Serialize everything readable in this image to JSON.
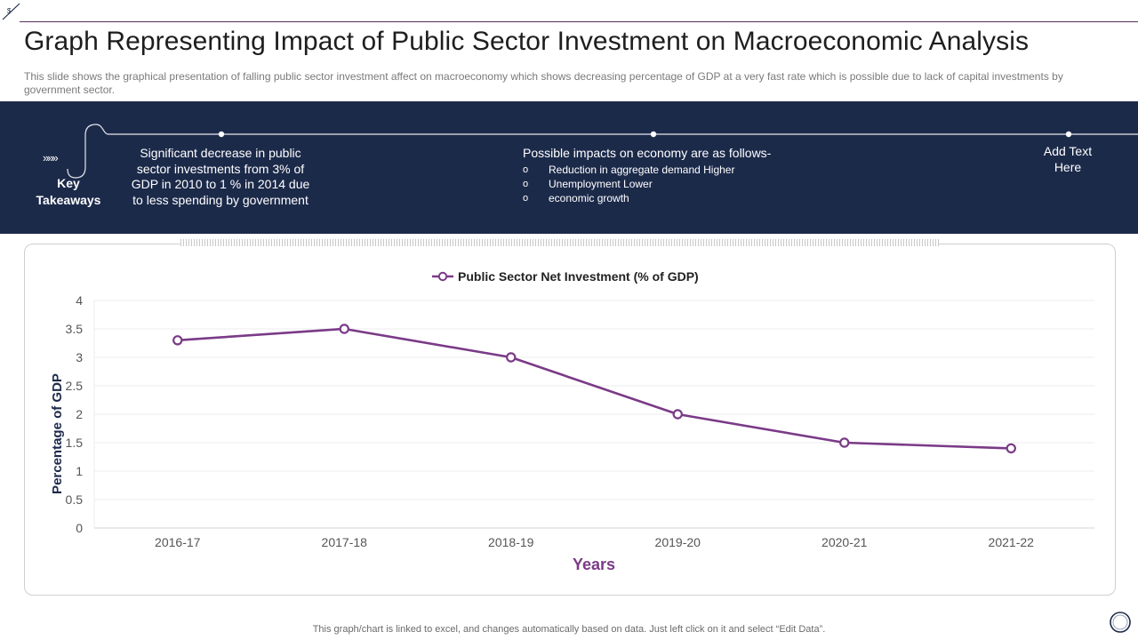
{
  "slide": {
    "title": "Graph Representing Impact of Public Sector Investment on Macroeconomic Analysis",
    "subtitle": "This slide shows the graphical presentation of falling public sector investment affect on macroeconomy which shows decreasing percentage of GDP at a very fast rate which is possible due to lack of capital investments by government  sector.",
    "footer": "This graph/chart is linked to excel,  and changes automatically based on data. Just left click on it and select “Edit Data”."
  },
  "takeaways": {
    "label": "Key Takeaways",
    "arrow_glyph": "»»»",
    "point1": "Significant decrease in public sector investments from 3% of GDP in 2010 to 1 % in 2014 due to less spending by government",
    "point2_heading": "Possible impacts on economy are as follows-",
    "point2_items": [
      "Reduction in aggregate demand Higher",
      "Unemployment Lower",
      "economic growth"
    ],
    "bullet_glyph": "o",
    "point3": "Add Text Here"
  },
  "colors": {
    "band": "#1c2a4a",
    "series": "#7b3a87",
    "axis_title": "#7b3a87",
    "ylabel": "#1c2a4a"
  },
  "chart_data": {
    "type": "line",
    "title": "",
    "categories": [
      "2016-17",
      "2017-18",
      "2018-19",
      "2019-20",
      "2020-21",
      "2021-22"
    ],
    "series": [
      {
        "name": "Public Sector Net Investment (% of GDP)",
        "values": [
          3.3,
          3.5,
          3.0,
          2.0,
          1.5,
          1.4
        ]
      }
    ],
    "xlabel": "Years",
    "ylabel": "Percentage of GDP",
    "ylim": [
      0,
      4
    ],
    "yticks": [
      "0",
      "0.5",
      "1",
      "1.5",
      "2",
      "2.5",
      "3",
      "3.5",
      "4"
    ],
    "grid": true,
    "legend": "top-center"
  }
}
